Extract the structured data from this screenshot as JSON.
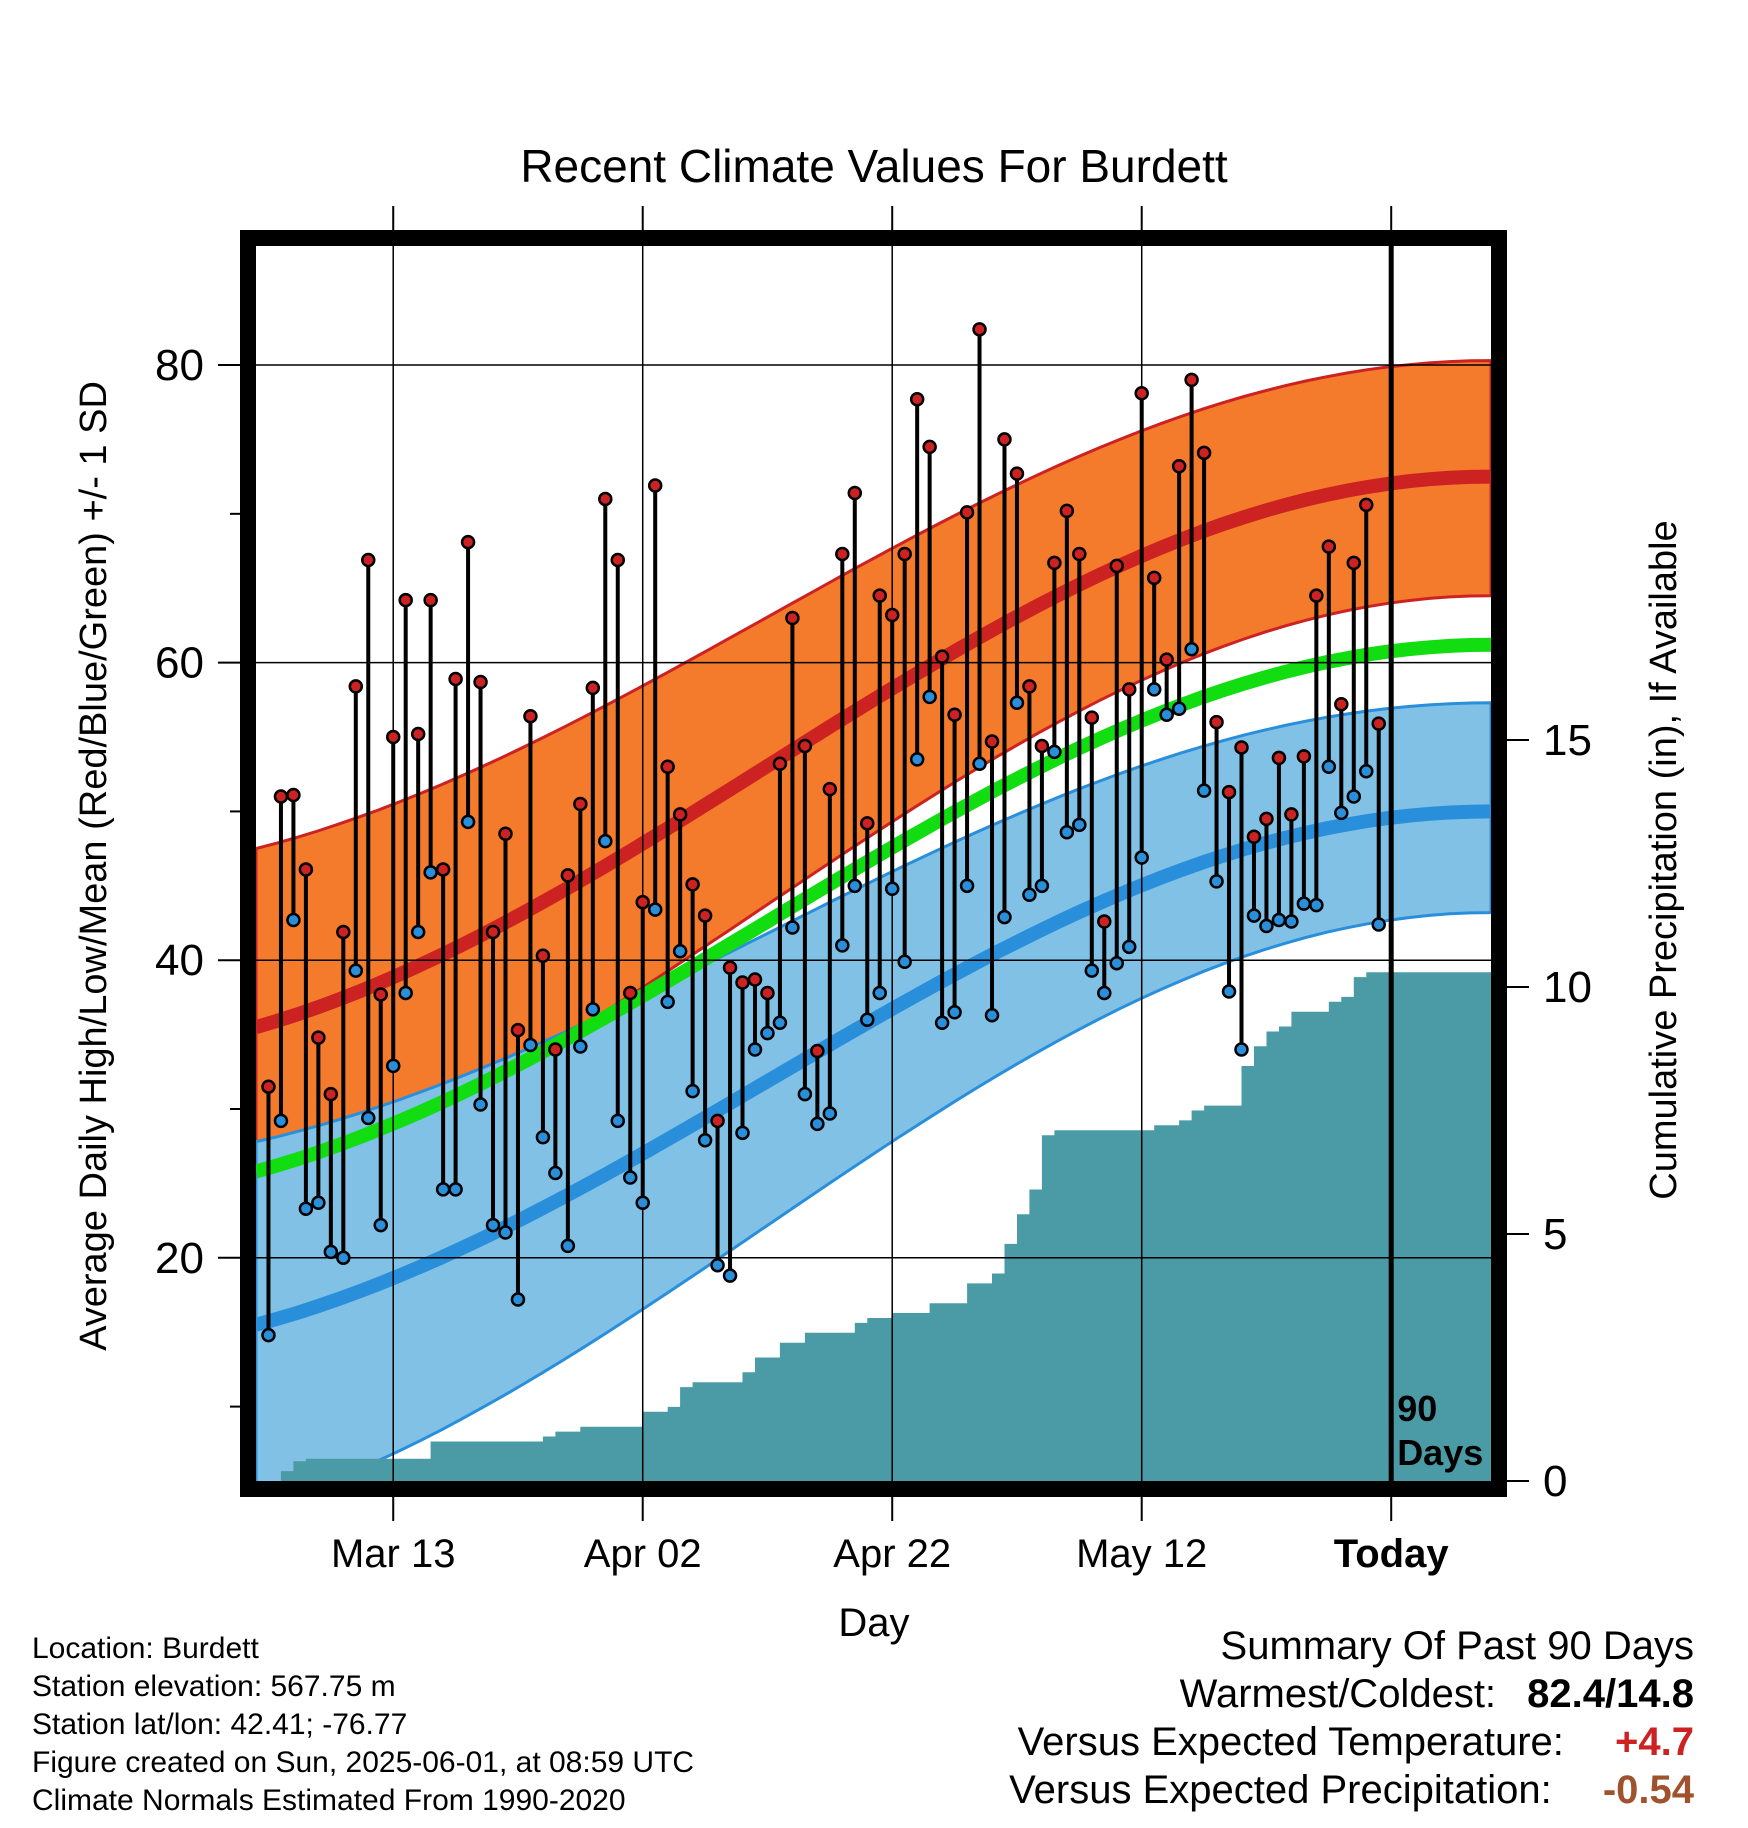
{
  "chart_data": {
    "type": "line",
    "title": "Recent Climate Values For Burdett",
    "xlabel": "Day",
    "ylabel": "Average Daily High/Low/Mean (Red/Blue/Green) +/- 1 SD",
    "y2label": "Cumulative Precipitation (in), If Available",
    "ylim": [
      5,
      88
    ],
    "y2lim": [
      0,
      25
    ],
    "yticks": [
      20,
      40,
      60,
      80
    ],
    "y2ticks": [
      0,
      5,
      10,
      15
    ],
    "xlim": [
      0,
      99
    ],
    "x_ticks": [
      {
        "day": 11,
        "label": "Mar 13"
      },
      {
        "day": 31,
        "label": "Apr 02"
      },
      {
        "day": 51,
        "label": "Apr 22"
      },
      {
        "day": 71,
        "label": "May 12"
      },
      {
        "day": 91,
        "label": "Today"
      }
    ],
    "today_marker": {
      "day": 91,
      "label_line1": "90",
      "label_line2": "Days"
    },
    "normals": {
      "x": [
        0,
        99
      ],
      "high_mean": [
        35.5,
        72.5
      ],
      "high_sd_upper": [
        47.5,
        80.3
      ],
      "high_sd_lower": [
        25.0,
        64.5
      ],
      "mean": [
        25.8,
        61.2
      ],
      "low_mean": [
        15.5,
        50.0
      ],
      "low_sd_upper": [
        27.8,
        57.3
      ],
      "low_sd_lower": [
        3.2,
        43.2
      ]
    },
    "series": [
      {
        "name": "High",
        "color": "#cc2222",
        "values": [
          31.5,
          51,
          51.1,
          46.1,
          34.8,
          31,
          41.9,
          58.4,
          66.9,
          37.7,
          55,
          64.2,
          55.2,
          64.2,
          46.1,
          58.9,
          68.1,
          58.7,
          41.9,
          48.5,
          35.3,
          56.4,
          40.3,
          34,
          45.7,
          50.5,
          58.3,
          71,
          66.9,
          37.8,
          43.9,
          71.9,
          53,
          49.8,
          45.1,
          43,
          29.2,
          39.5,
          38.5,
          38.7,
          37.8,
          53.2,
          63,
          54.4,
          33.9,
          51.5,
          67.3,
          71.4,
          49.2,
          64.5,
          63.2,
          67.3,
          77.7,
          74.5,
          60.4,
          56.5,
          70.1,
          82.4,
          54.7,
          75,
          72.7,
          58.4,
          54.4,
          66.7,
          70.2,
          67.3,
          56.3,
          42.6,
          66.5,
          58.2,
          78.1,
          65.7,
          60.2,
          73.2,
          79,
          74.1,
          56,
          51.3,
          54.3,
          48.3,
          49.5,
          53.6,
          49.8,
          53.7,
          64.5,
          67.8,
          57.2,
          66.7,
          70.6,
          55.9
        ]
      },
      {
        "name": "Low",
        "color": "#2a8fdb",
        "values": [
          14.8,
          29.2,
          42.7,
          23.3,
          23.7,
          20.4,
          20,
          39.3,
          29.4,
          22.2,
          32.9,
          37.8,
          41.9,
          45.9,
          24.6,
          24.6,
          49.3,
          30.3,
          22.2,
          21.7,
          17.2,
          34.3,
          28.1,
          25.7,
          20.8,
          34.2,
          36.7,
          48,
          29.2,
          25.4,
          23.7,
          43.4,
          37.2,
          40.6,
          31.2,
          27.9,
          19.5,
          18.8,
          28.4,
          34,
          35.1,
          35.8,
          42.2,
          31,
          29,
          29.7,
          41,
          45,
          36,
          37.8,
          44.8,
          39.9,
          53.5,
          57.7,
          35.8,
          36.5,
          45,
          53.2,
          36.3,
          42.9,
          57.3,
          44.4,
          45,
          54,
          48.6,
          49.1,
          39.3,
          37.8,
          39.8,
          40.9,
          46.9,
          58.2,
          56.5,
          56.9,
          60.9,
          51.4,
          45.3,
          37.9,
          34,
          43,
          42.3,
          42.7,
          42.6,
          43.8,
          43.7,
          53,
          49.9,
          51,
          52.7,
          42.4
        ]
      }
    ],
    "precip": {
      "x": [
        0,
        2,
        3,
        4,
        5,
        6,
        7,
        8,
        9,
        10,
        11,
        12,
        13,
        14,
        15,
        16,
        17,
        18,
        19,
        20,
        21,
        22,
        23,
        24,
        25,
        26,
        27,
        28,
        29,
        30,
        31,
        32,
        33,
        34,
        35,
        36,
        37,
        38,
        39,
        40,
        41,
        42,
        43,
        44,
        45,
        46,
        47,
        48,
        49,
        50,
        51,
        52,
        53,
        54,
        55,
        56,
        57,
        58,
        59,
        60,
        61,
        62,
        63,
        64,
        65,
        66,
        67,
        68,
        69,
        70,
        71,
        72,
        73,
        74,
        75,
        76,
        77,
        78,
        79,
        80,
        81,
        82,
        83,
        84,
        85,
        86,
        87,
        88,
        89,
        90,
        91,
        92,
        93,
        94,
        95,
        96,
        97,
        98,
        99
      ],
      "values": [
        0,
        0.2,
        0.4,
        0.45,
        0.45,
        0.45,
        0.45,
        0.45,
        0.45,
        0.45,
        0.45,
        0.45,
        0.45,
        0.8,
        0.8,
        0.8,
        0.8,
        0.8,
        0.8,
        0.8,
        0.8,
        0.8,
        0.9,
        1.0,
        1.0,
        1.1,
        1.1,
        1.1,
        1.1,
        1.1,
        1.4,
        1.4,
        1.5,
        1.9,
        2.0,
        2.0,
        2.0,
        2.0,
        2.2,
        2.5,
        2.5,
        2.8,
        2.8,
        3.0,
        3.0,
        3.0,
        3.0,
        3.2,
        3.3,
        3.3,
        3.4,
        3.4,
        3.4,
        3.6,
        3.6,
        3.6,
        4.0,
        4.0,
        4.2,
        4.8,
        5.4,
        5.9,
        7.0,
        7.1,
        7.1,
        7.1,
        7.1,
        7.1,
        7.1,
        7.1,
        7.1,
        7.2,
        7.2,
        7.3,
        7.5,
        7.6,
        7.6,
        7.6,
        8.4,
        8.8,
        9.1,
        9.2,
        9.5,
        9.5,
        9.5,
        9.7,
        9.8,
        10.2,
        10.3,
        10.3,
        10.3,
        10.3,
        10.3,
        10.3,
        10.3,
        10.3,
        10.3,
        10.3,
        10.3
      ]
    },
    "colors": {
      "high_band": "#f47a2c",
      "high_mean_line": "#cc2222",
      "mean_line": "#11dd11",
      "low_band": "#82c1e6",
      "low_mean_line": "#2a8fdb",
      "precip_fill": "#4a9ba6",
      "grid": "#000000",
      "frame": "#000000"
    },
    "grid": true
  },
  "info": {
    "location": "Location: Burdett",
    "elevation": "Station elevation: 567.75 m",
    "latlon": "Station lat/lon: 42.41; -76.77",
    "created": "Figure created on Sun, 2025-06-01, at 08:59 UTC",
    "normals_period": "Climate Normals Estimated From 1990-2020"
  },
  "summary": {
    "heading": "Summary Of Past 90 Days",
    "warmest_label": "Warmest/Coldest:",
    "warmest_value": "82.4/14.8",
    "temp_label": "Versus Expected Temperature:",
    "temp_value": "+4.7",
    "temp_color": "#cc2222",
    "precip_label": "Versus Expected Precipitation:",
    "precip_value": "-0.54",
    "precip_color": "#a0522d"
  }
}
